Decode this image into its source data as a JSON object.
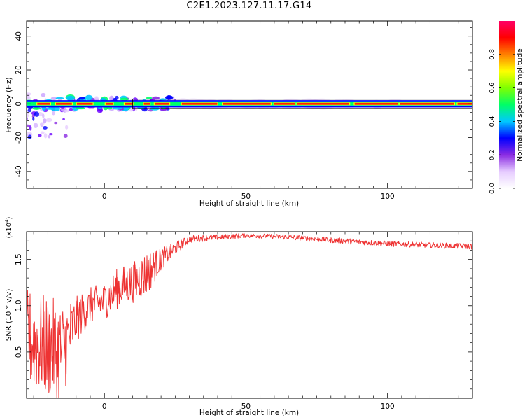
{
  "title": "C2E1.2023.127.11.17.G14",
  "colorbar": {
    "label": "Normalized spectral amplitude",
    "ticks": [
      "0.0",
      "0.2",
      "0.4",
      "0.6",
      "0.8"
    ],
    "tick_values": [
      0.0,
      0.2,
      0.4,
      0.6,
      0.8
    ],
    "range": [
      0,
      1
    ],
    "colormap": [
      "#ffffff",
      "#e6ccff",
      "#8a2be2",
      "#0000ff",
      "#00c8ff",
      "#00ff66",
      "#80ff00",
      "#ffff00",
      "#ff8000",
      "#ff0000",
      "#ff0066"
    ]
  },
  "chart_data": [
    {
      "type": "heatmap",
      "title": "",
      "xlabel": "Height of straight line (km)",
      "ylabel": "Frequency (Hz)",
      "xlim": [
        -27.5,
        130
      ],
      "ylim": [
        -50,
        49
      ],
      "xticks": [
        0,
        50,
        100
      ],
      "xtick_labels": [
        "0",
        "50",
        "100"
      ],
      "yticks": [
        -40,
        -20,
        0,
        20,
        40
      ],
      "ytick_labels": [
        "-40",
        "-20",
        "0",
        "20",
        "40"
      ],
      "description_values": {
        "main_band_frequency_hz": 0,
        "band_half_width_hz": 1.5,
        "box_x_range_km": [
          10,
          130
        ],
        "scatter_x_range_km": [
          -27.5,
          25
        ],
        "scatter_y_range_hz": [
          -22,
          6
        ]
      }
    },
    {
      "type": "line",
      "title": "",
      "xlabel": "Height of straight line (km)",
      "ylabel": "SNR (10 * v/v)",
      "scale_label_prefix": "(x10",
      "scale_label_exp": "4",
      "scale_label_suffix": ")",
      "xlim": [
        -27.5,
        130
      ],
      "ylim": [
        0,
        1.8
      ],
      "xticks": [
        0,
        50,
        100
      ],
      "xtick_labels": [
        "0",
        "50",
        "100"
      ],
      "yticks": [
        0.5,
        1.0,
        1.5
      ],
      "ytick_labels": [
        "0.5",
        "1.0",
        "1.5"
      ],
      "color": "#ee3333",
      "envelope": {
        "x": [
          -27.5,
          -20,
          -15,
          -10,
          -5,
          0,
          5,
          10,
          15,
          20,
          25,
          30,
          40,
          50,
          60,
          70,
          80,
          90,
          100,
          110,
          120,
          130
        ],
        "y": [
          0.65,
          0.55,
          0.5,
          0.85,
          1.0,
          1.05,
          1.2,
          1.25,
          1.35,
          1.5,
          1.62,
          1.72,
          1.74,
          1.76,
          1.75,
          1.73,
          1.71,
          1.69,
          1.67,
          1.66,
          1.65,
          1.64
        ],
        "noise": [
          0.55,
          0.55,
          0.55,
          0.25,
          0.2,
          0.2,
          0.22,
          0.22,
          0.25,
          0.12,
          0.07,
          0.04,
          0.03,
          0.025,
          0.025,
          0.03,
          0.03,
          0.03,
          0.03,
          0.03,
          0.03,
          0.03
        ]
      }
    }
  ]
}
